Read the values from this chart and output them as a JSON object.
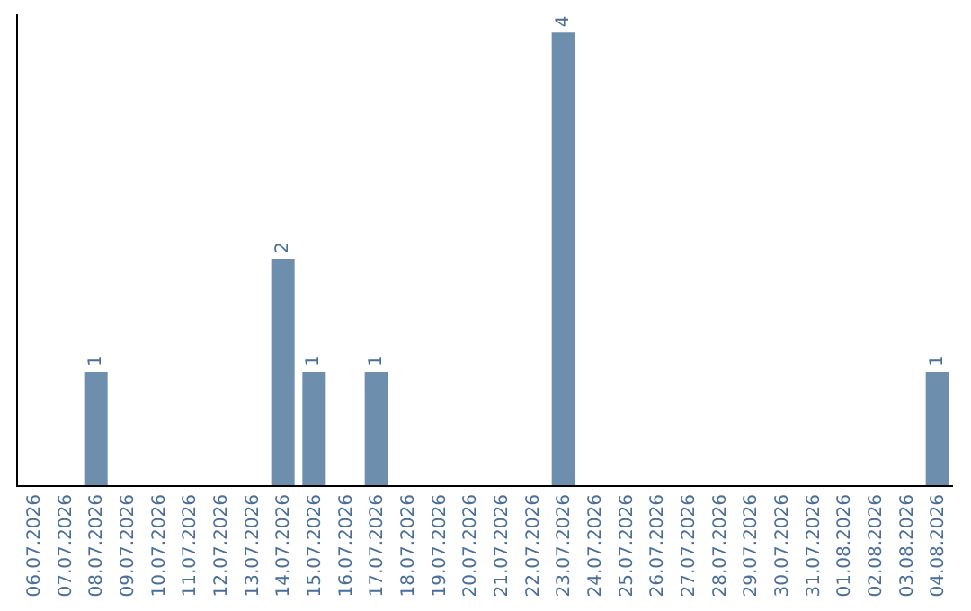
{
  "chart_data": {
    "type": "bar",
    "categories": [
      "06.07.2026",
      "07.07.2026",
      "08.07.2026",
      "09.07.2026",
      "10.07.2026",
      "11.07.2026",
      "12.07.2026",
      "13.07.2026",
      "14.07.2026",
      "15.07.2026",
      "16.07.2026",
      "17.07.2026",
      "18.07.2026",
      "19.07.2026",
      "20.07.2026",
      "21.07.2026",
      "22.07.2026",
      "23.07.2026",
      "24.07.2026",
      "25.07.2026",
      "26.07.2026",
      "27.07.2026",
      "28.07.2026",
      "29.07.2026",
      "30.07.2026",
      "31.07.2026",
      "01.08.2026",
      "02.08.2026",
      "03.08.2026",
      "04.08.2026"
    ],
    "values": [
      0,
      0,
      1,
      0,
      0,
      0,
      0,
      0,
      2,
      1,
      0,
      1,
      0,
      0,
      0,
      0,
      0,
      4,
      0,
      0,
      0,
      0,
      0,
      0,
      0,
      0,
      0,
      0,
      0,
      1
    ],
    "value_labels": [
      null,
      null,
      "1",
      null,
      null,
      null,
      null,
      null,
      "2",
      "1",
      null,
      "1",
      null,
      null,
      null,
      null,
      null,
      "4",
      null,
      null,
      null,
      null,
      null,
      null,
      null,
      null,
      null,
      null,
      null,
      "1"
    ],
    "color": "#6d8fad",
    "ylim": [
      0,
      4.16
    ],
    "tick_labels": "x"
  }
}
